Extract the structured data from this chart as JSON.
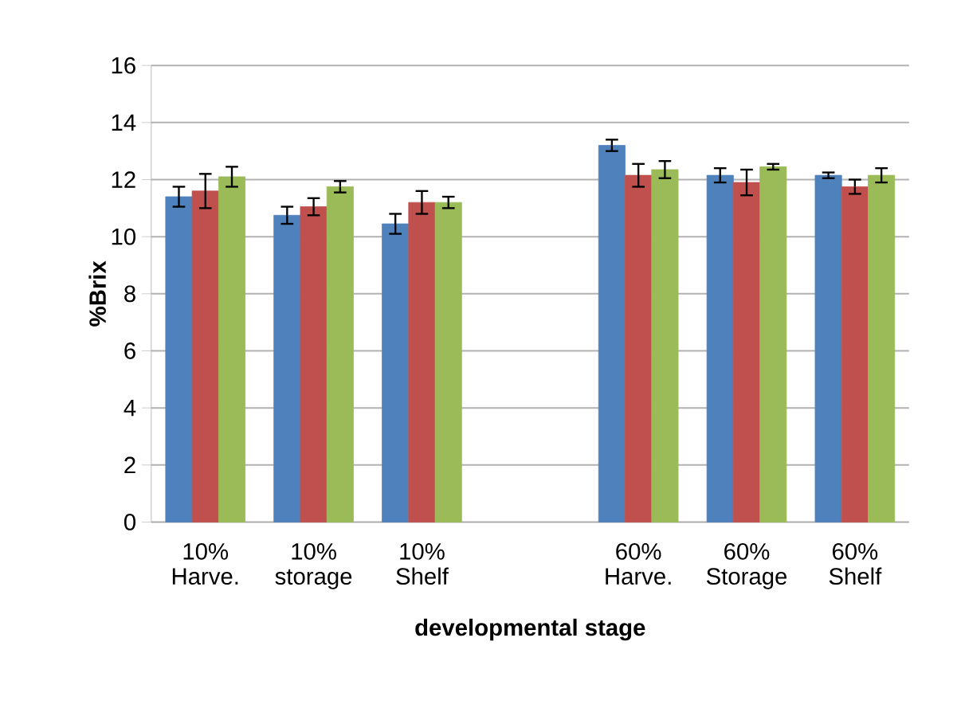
{
  "chart_data": {
    "type": "bar",
    "xlabel": "developmental stage",
    "ylabel": "%Brix",
    "categories": [
      "10% Harve.",
      "10% storage",
      "10% Shelf",
      null,
      "60% Harve.",
      "60% Storage",
      "60% Shelf"
    ],
    "series": [
      {
        "color": "#4f81bd",
        "values": [
          11.4,
          10.75,
          10.45,
          null,
          13.2,
          12.15,
          12.15
        ],
        "errors": [
          0.35,
          0.3,
          0.35,
          null,
          0.2,
          0.25,
          0.1
        ]
      },
      {
        "color": "#c0504d",
        "values": [
          11.6,
          11.05,
          11.2,
          null,
          12.15,
          11.9,
          11.75
        ],
        "errors": [
          0.6,
          0.3,
          0.4,
          null,
          0.4,
          0.45,
          0.25
        ]
      },
      {
        "color": "#9bbb59",
        "values": [
          12.1,
          11.75,
          11.2,
          null,
          12.35,
          12.45,
          12.15
        ],
        "errors": [
          0.35,
          0.2,
          0.2,
          null,
          0.3,
          0.1,
          0.25
        ]
      }
    ],
    "ylim": [
      0,
      16
    ],
    "yticks": [
      0,
      2,
      4,
      6,
      8,
      10,
      12,
      14,
      16
    ],
    "grid": "y"
  }
}
